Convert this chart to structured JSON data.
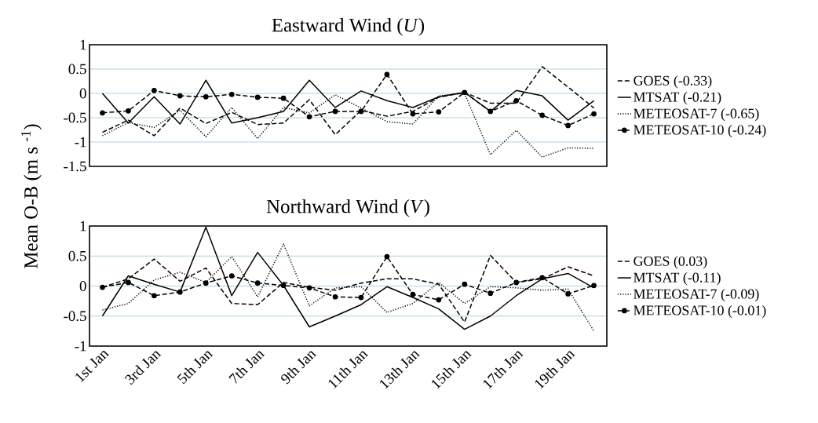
{
  "chart_data": [
    {
      "type": "line",
      "title": "Eastward Wind (*U*)",
      "ylabel": "Mean O-B (m s $^{-1}$)",
      "categories": [
        null,
        null,
        null,
        null,
        null,
        null,
        null,
        null,
        null,
        null,
        null,
        null,
        null,
        null,
        null,
        null,
        null,
        null,
        null,
        null
      ],
      "ylim": [
        -1.5,
        1
      ],
      "yticks": [
        -1.5,
        -1,
        -0.5,
        0,
        0.5,
        1
      ],
      "grid": "y",
      "legend": "right",
      "tick_labels": "y",
      "series": [
        {
          "name": "GOES (-0.33)",
          "color": "#000000",
          "line_style": "dashed",
          "marker": "none",
          "values": [
            -0.8,
            -0.55,
            -0.87,
            -0.3,
            -0.62,
            -0.39,
            -0.64,
            -0.61,
            -0.13,
            -0.85,
            -0.35,
            -0.47,
            -0.37,
            -0.08,
            0.02,
            -0.2,
            -0.2,
            0.55,
            0.13,
            -0.3
          ]
        },
        {
          "name": "MTSAT (-0.21)",
          "color": "#000000",
          "line_style": "solid",
          "marker": "none",
          "values": [
            0,
            -0.61,
            -0.07,
            -0.63,
            0.27,
            -0.61,
            -0.5,
            -0.37,
            0.27,
            -0.29,
            0.05,
            -0.15,
            -0.29,
            -0.07,
            0.02,
            -0.37,
            0.06,
            -0.05,
            -0.55,
            -0.15
          ]
        },
        {
          "name": "METEOSAT-7 (-0.65)",
          "color": "#000000",
          "line_style": "dotted",
          "marker": "none",
          "values": [
            -0.87,
            -0.6,
            -0.7,
            -0.35,
            -0.89,
            -0.29,
            -0.93,
            -0.29,
            -0.4,
            -0.03,
            -0.3,
            -0.58,
            -0.63,
            -0.05,
            0.0,
            -1.26,
            -0.76,
            -1.31,
            -1.12,
            -1.13
          ]
        },
        {
          "name": "METEOSAT-10 (-0.24)",
          "color": "#000000",
          "line_style": "dashed",
          "marker": "circle",
          "values": [
            -0.4,
            -0.36,
            0.06,
            -0.05,
            -0.07,
            -0.02,
            -0.08,
            -0.1,
            -0.48,
            -0.37,
            -0.37,
            0.39,
            -0.42,
            -0.38,
            0.02,
            -0.37,
            -0.15,
            -0.45,
            -0.66,
            -0.42
          ]
        }
      ]
    },
    {
      "type": "line",
      "title": "Northward Wind (*V*)",
      "categories": [
        "1st Jan",
        null,
        "3rd Jan",
        null,
        "5th Jan",
        null,
        "7th Jan",
        null,
        "9th Jan",
        null,
        "11th Jan",
        null,
        "13th Jan",
        null,
        "15th Jan",
        null,
        "17th Jan",
        null,
        "19th Jan",
        null
      ],
      "ylim": [
        -1,
        1
      ],
      "yticks": [
        -1,
        -0.5,
        0,
        0.5,
        1
      ],
      "grid": "y",
      "legend": "right",
      "series": [
        {
          "name": "GOES (0.03)",
          "color": "#000000",
          "line_style": "dashed",
          "marker": "none",
          "values": [
            -0.02,
            0.12,
            0.45,
            0.08,
            0.3,
            -0.29,
            -0.31,
            0.06,
            -0.02,
            -0.07,
            0.05,
            0.12,
            0.12,
            0.03,
            -0.6,
            0.51,
            0.06,
            0.12,
            0.32,
            0.17
          ]
        },
        {
          "name": "MTSAT (-0.11)",
          "color": "#000000",
          "line_style": "solid",
          "marker": "none",
          "values": [
            -0.5,
            0.17,
            0.03,
            -0.1,
            0.98,
            -0.16,
            0.56,
            0.01,
            -0.68,
            -0.5,
            -0.31,
            -0.01,
            -0.19,
            -0.38,
            -0.72,
            -0.5,
            -0.16,
            0.12,
            0.21,
            -0.03
          ]
        },
        {
          "name": "METEOSAT-7 (-0.09)",
          "color": "#000000",
          "line_style": "dotted",
          "marker": "none",
          "values": [
            -0.4,
            -0.29,
            0.1,
            0.23,
            0.06,
            0.49,
            -0.18,
            0.7,
            -0.33,
            -0.03,
            -0.01,
            -0.44,
            -0.29,
            0.06,
            -0.29,
            -0.01,
            -0.03,
            -0.07,
            -0.05,
            -0.75
          ]
        },
        {
          "name": "METEOSAT-10 (-0.01)",
          "color": "#000000",
          "line_style": "dashed",
          "marker": "circle",
          "values": [
            -0.02,
            0.06,
            -0.16,
            -0.1,
            0.05,
            0.17,
            0.05,
            0.01,
            -0.03,
            -0.18,
            -0.19,
            0.49,
            -0.14,
            -0.23,
            0.03,
            -0.12,
            0.06,
            0.14,
            -0.13,
            0.01
          ]
        }
      ]
    }
  ]
}
